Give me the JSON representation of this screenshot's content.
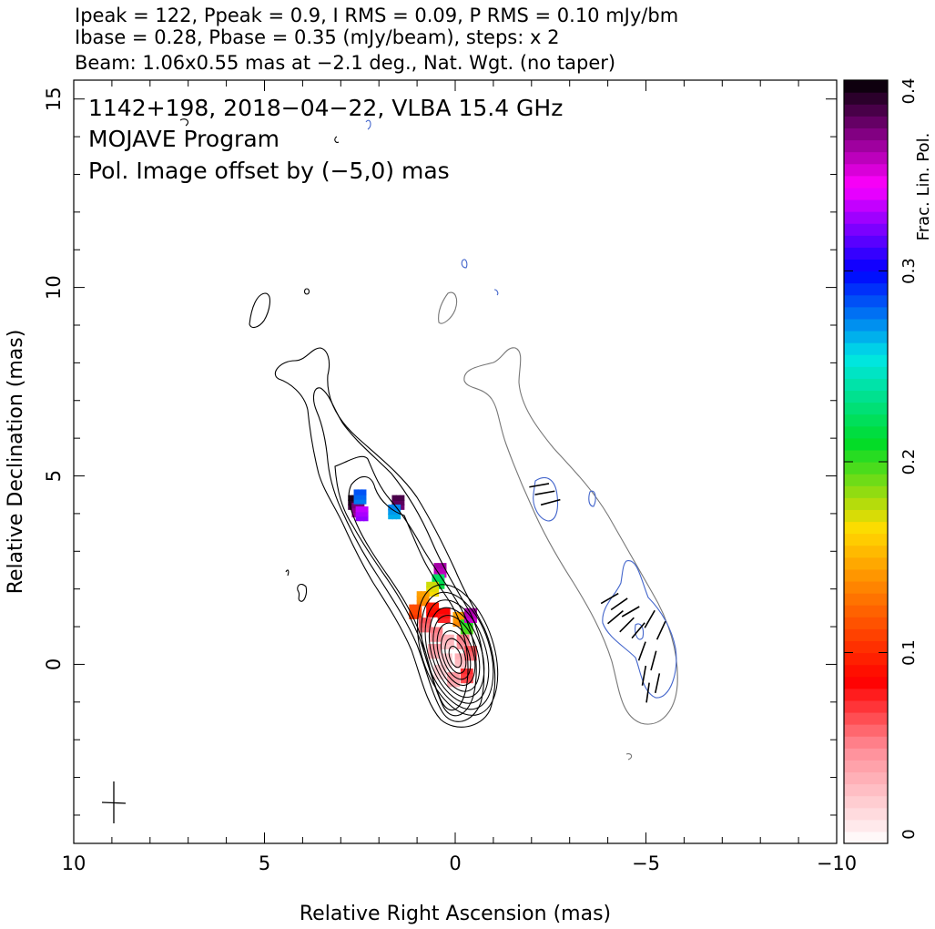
{
  "header": {
    "line1": "Ipeak = 122, Ppeak = 0.9, I RMS = 0.09, P RMS = 0.10 mJy/bm",
    "line2": "Ibase = 0.28, Pbase = 0.35 (mJy/beam), steps: x 2",
    "line3": "Beam: 1.06x0.55 mas at −2.1 deg., Nat. Wgt. (no taper)"
  },
  "annotations": {
    "source": "1142+198, 2018−04−22, VLBA 15.4 GHz",
    "program": "MOJAVE Program",
    "offset_note": "Pol. Image offset by (−5,0) mas"
  },
  "colors": {
    "offset_note": "#5577dd",
    "pol_contour": "#4466cc",
    "outer_contour": "#777777",
    "evpa": "#000000"
  },
  "chart_data": {
    "type": "contour-map",
    "xlabel": "Relative Right Ascension (mas)",
    "ylabel": "Relative Declination (mas)",
    "xlim": [
      10,
      -10
    ],
    "ylim": [
      -4.75,
      15.5
    ],
    "x_ticks": [
      10,
      5,
      0,
      -5,
      -10
    ],
    "x_tick_labels": [
      "10",
      "5",
      "0",
      "−5",
      "−10"
    ],
    "y_ticks": [
      0,
      5,
      10,
      15
    ],
    "y_tick_labels": [
      "0",
      "5",
      "10",
      "15"
    ],
    "colorbar": {
      "label": "Frac. Lin. Pol.",
      "min": 0,
      "max": 0.4,
      "ticks": [
        0,
        0.1,
        0.2,
        0.3,
        0.4
      ],
      "tick_labels": [
        "0",
        "0.1",
        "0.2",
        "0.3",
        "0.4"
      ]
    },
    "core": {
      "ra": 0.0,
      "dec": 0.2
    },
    "beam": {
      "major_mas": 1.06,
      "minor_mas": 0.55,
      "pa_deg": -2.1,
      "center": [
        8.9,
        -3.7
      ]
    },
    "contour_levels_count": 9,
    "pol_offset_mas": [
      -5,
      0
    ],
    "frac_pol_pixels": [
      {
        "ra": 2.65,
        "dec": 4.3,
        "value": 0.39
      },
      {
        "ra": 2.55,
        "dec": 4.1,
        "value": 0.37
      },
      {
        "ra": 2.45,
        "dec": 4.0,
        "value": 0.33
      },
      {
        "ra": 2.5,
        "dec": 4.45,
        "value": 0.28
      },
      {
        "ra": 1.5,
        "dec": 4.3,
        "value": 0.38
      },
      {
        "ra": 1.6,
        "dec": 4.05,
        "value": 0.27
      },
      {
        "ra": 0.4,
        "dec": 2.5,
        "value": 0.36
      },
      {
        "ra": 0.45,
        "dec": 2.2,
        "value": 0.22
      },
      {
        "ra": 0.6,
        "dec": 2.0,
        "value": 0.17
      },
      {
        "ra": 0.85,
        "dec": 1.75,
        "value": 0.14
      },
      {
        "ra": 1.05,
        "dec": 1.4,
        "value": 0.11
      },
      {
        "ra": 0.6,
        "dec": 1.45,
        "value": 0.09
      },
      {
        "ra": 0.3,
        "dec": 1.3,
        "value": 0.08
      },
      {
        "ra": -0.1,
        "dec": 1.2,
        "value": 0.14
      },
      {
        "ra": -0.3,
        "dec": 1.0,
        "value": 0.2
      },
      {
        "ra": -0.4,
        "dec": 1.3,
        "value": 0.36
      },
      {
        "ra": 0.8,
        "dec": 1.05,
        "value": 0.06
      },
      {
        "ra": 0.5,
        "dec": 0.8,
        "value": 0.05
      },
      {
        "ra": 0.2,
        "dec": 0.6,
        "value": 0.03
      },
      {
        "ra": -0.2,
        "dec": 0.6,
        "value": 0.05
      },
      {
        "ra": 0.55,
        "dec": 0.35,
        "value": 0.04
      },
      {
        "ra": 0.25,
        "dec": 0.1,
        "value": 0.02
      },
      {
        "ra": -0.15,
        "dec": 0.1,
        "value": 0.03
      },
      {
        "ra": -0.4,
        "dec": 0.3,
        "value": 0.06
      },
      {
        "ra": 0.4,
        "dec": -0.2,
        "value": 0.02
      },
      {
        "ra": 0.05,
        "dec": -0.4,
        "value": 0.04
      },
      {
        "ra": -0.3,
        "dec": -0.3,
        "value": 0.07
      }
    ],
    "evpa_vectors": [
      {
        "ra": -2.2,
        "dec": 4.75,
        "angle_deg": 80
      },
      {
        "ra": -2.35,
        "dec": 4.55,
        "angle_deg": 80
      },
      {
        "ra": -2.5,
        "dec": 4.3,
        "angle_deg": 75
      },
      {
        "ra": -4.05,
        "dec": 1.75,
        "angle_deg": 60
      },
      {
        "ra": -4.3,
        "dec": 1.6,
        "angle_deg": 55
      },
      {
        "ra": -4.6,
        "dec": 1.4,
        "angle_deg": 60
      },
      {
        "ra": -4.2,
        "dec": 1.25,
        "angle_deg": 50
      },
      {
        "ra": -4.5,
        "dec": 1.05,
        "angle_deg": 45
      },
      {
        "ra": -4.8,
        "dec": 0.9,
        "angle_deg": 40
      },
      {
        "ra": -5.1,
        "dec": 1.2,
        "angle_deg": 30
      },
      {
        "ra": -5.4,
        "dec": 0.9,
        "angle_deg": 25
      },
      {
        "ra": -4.9,
        "dec": 0.35,
        "angle_deg": 20
      },
      {
        "ra": -5.2,
        "dec": 0.1,
        "angle_deg": 15
      },
      {
        "ra": -4.95,
        "dec": -0.3,
        "angle_deg": 10
      },
      {
        "ra": -5.3,
        "dec": -0.5,
        "angle_deg": 12
      },
      {
        "ra": -5.05,
        "dec": -0.75,
        "angle_deg": 8
      }
    ]
  }
}
